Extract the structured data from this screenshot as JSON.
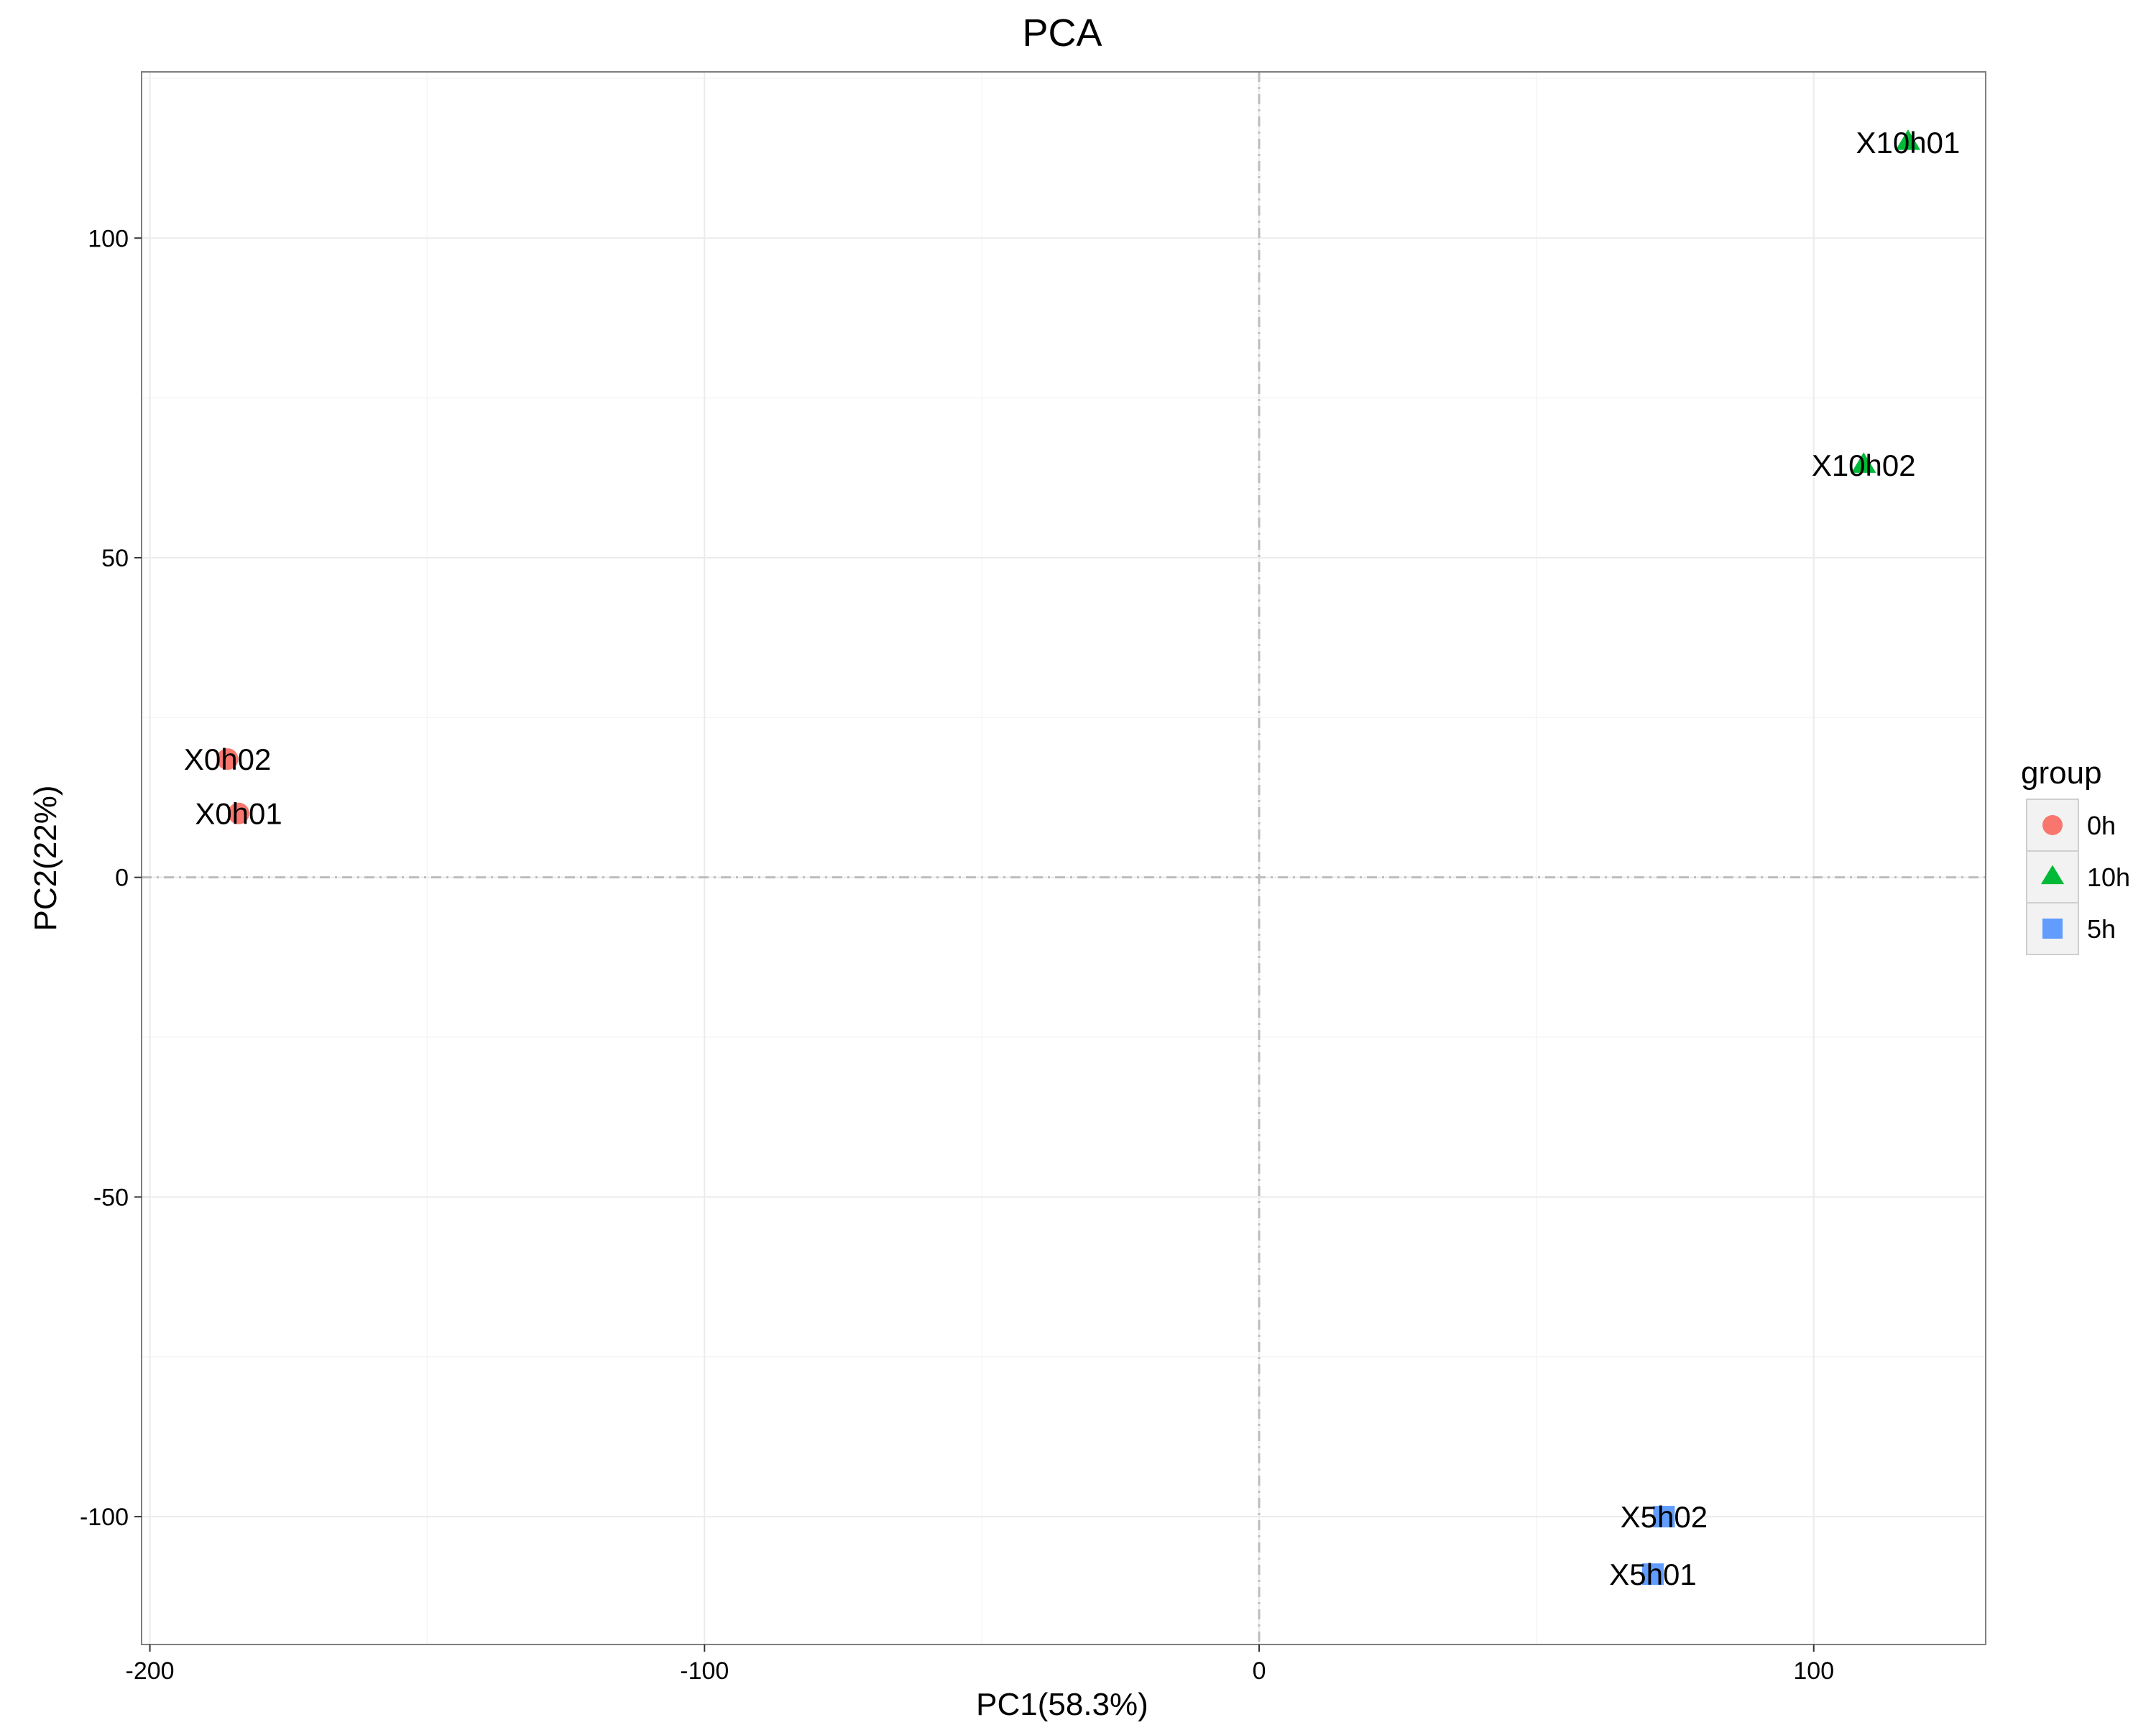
{
  "chart_data": {
    "type": "scatter",
    "title": "PCA",
    "xlabel": "PC1(58.3%)",
    "ylabel": "PC2(22%)",
    "xlim": [
      -201.5,
      131
    ],
    "ylim": [
      -120,
      126
    ],
    "x_ticks": [
      -200,
      -100,
      0,
      100
    ],
    "y_ticks": [
      -100,
      -50,
      0,
      50,
      100
    ],
    "x_tick_labels": [
      "-200",
      "-100",
      "0",
      "100"
    ],
    "y_tick_labels": [
      "-100",
      "-50",
      "0",
      "50",
      "100"
    ],
    "grid": true,
    "reference_lines": {
      "x": 0,
      "y": 0,
      "style": "dashdot"
    },
    "legend": {
      "title": "group",
      "position": "right",
      "entries": [
        {
          "label": "0h",
          "shape": "circle",
          "color": "#F8766D"
        },
        {
          "label": "10h",
          "shape": "triangle",
          "color": "#00BA38"
        },
        {
          "label": "5h",
          "shape": "square",
          "color": "#619CFF"
        }
      ]
    },
    "series": [
      {
        "name": "0h",
        "shape": "circle",
        "color": "#F8766D",
        "points": [
          {
            "label": "X0h02",
            "x": -186,
            "y": 18.5
          },
          {
            "label": "X0h01",
            "x": -184,
            "y": 10
          }
        ]
      },
      {
        "name": "10h",
        "shape": "triangle",
        "color": "#00BA38",
        "points": [
          {
            "label": "X10h01",
            "x": 117,
            "y": 115
          },
          {
            "label": "X10h02",
            "x": 109,
            "y": 64.5
          }
        ]
      },
      {
        "name": "5h",
        "shape": "square",
        "color": "#619CFF",
        "points": [
          {
            "label": "X5h02",
            "x": 73,
            "y": -100
          },
          {
            "label": "X5h01",
            "x": 71,
            "y": -109
          }
        ]
      }
    ]
  }
}
